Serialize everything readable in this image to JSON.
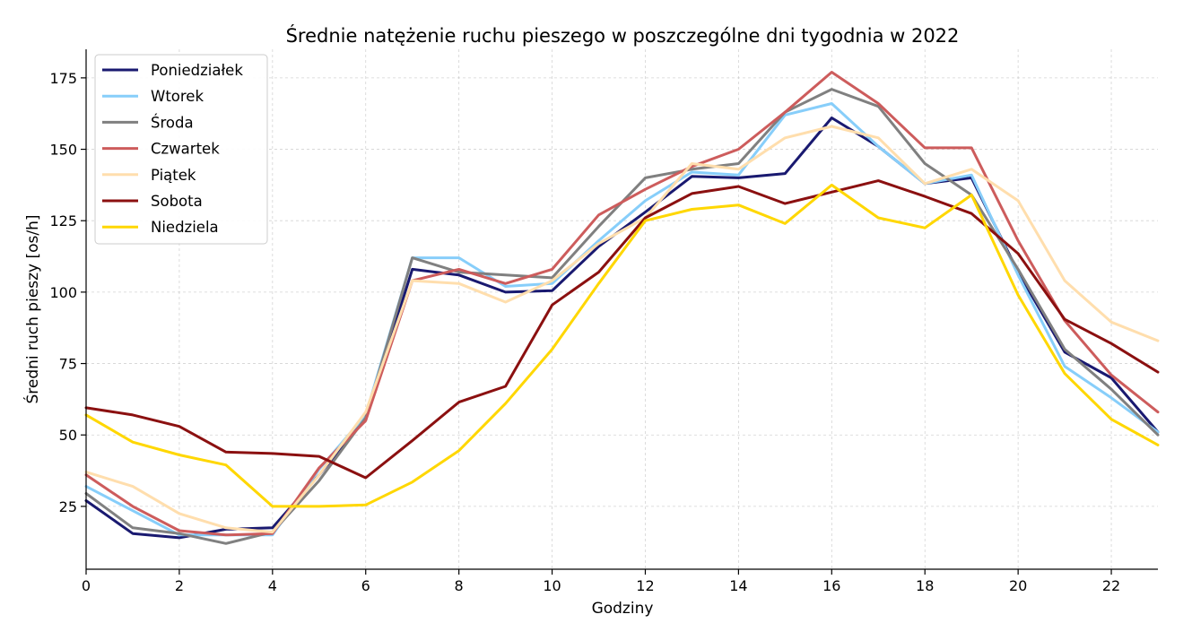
{
  "chart_data": {
    "type": "line",
    "title": "Średnie natężenie ruchu pieszego w poszczególne dni tygodnia w 2022",
    "xlabel": "Godziny",
    "ylabel": "Średni ruch pieszy [os/h]",
    "xlim": [
      0,
      23
    ],
    "ylim": [
      3,
      185
    ],
    "xticks": [
      0,
      2,
      4,
      6,
      8,
      10,
      12,
      14,
      16,
      18,
      20,
      22
    ],
    "yticks": [
      25,
      50,
      75,
      100,
      125,
      150,
      175
    ],
    "grid": true,
    "legend_position": "top-left",
    "x": [
      0,
      1,
      2,
      3,
      4,
      5,
      6,
      7,
      8,
      9,
      10,
      11,
      12,
      13,
      14,
      15,
      16,
      17,
      18,
      19,
      20,
      21,
      22,
      23
    ],
    "series": [
      {
        "name": "Poniedziałek",
        "color": "#191970",
        "values": [
          27,
          15.5,
          14,
          17,
          17.5,
          36,
          56,
          108,
          106,
          100,
          100.5,
          116,
          128,
          140.5,
          140,
          141.5,
          161,
          151,
          138,
          140,
          107,
          79,
          70,
          51
        ]
      },
      {
        "name": "Wtorek",
        "color": "#87cefa",
        "values": [
          32,
          23.5,
          15,
          15,
          15,
          38,
          57,
          112,
          112,
          102,
          103,
          118,
          132,
          142,
          141,
          162,
          166,
          151,
          138,
          141,
          106,
          74,
          63,
          51
        ]
      },
      {
        "name": "Środa",
        "color": "#808080",
        "values": [
          29.5,
          17.5,
          15.5,
          12,
          16,
          34,
          56,
          112,
          107,
          106,
          105,
          123,
          140,
          143,
          145,
          163,
          171,
          165,
          145,
          134,
          108,
          80,
          66,
          50
        ]
      },
      {
        "name": "Czwartek",
        "color": "#cd5c5c",
        "values": [
          36,
          25,
          16.5,
          15,
          15.5,
          38.5,
          55,
          104,
          108,
          103,
          108,
          127,
          136,
          144,
          150,
          163,
          177,
          166,
          150.5,
          150.5,
          118,
          90,
          71,
          58
        ]
      },
      {
        "name": "Piątek",
        "color": "#ffdead",
        "values": [
          37,
          32,
          22.5,
          17.5,
          16,
          36,
          58,
          104,
          103,
          96.5,
          104,
          117,
          126,
          145,
          143,
          154,
          158,
          154,
          138,
          143,
          132,
          104,
          89.5,
          83
        ]
      },
      {
        "name": "Sobota",
        "color": "#8b1010",
        "values": [
          59.5,
          57,
          53,
          44,
          43.5,
          42.5,
          35,
          48,
          61.5,
          67,
          95.5,
          107,
          126,
          134.5,
          137,
          131,
          135,
          139,
          133.5,
          127.5,
          113.5,
          90.5,
          82,
          72
        ]
      },
      {
        "name": "Niedziela",
        "color": "#ffd700",
        "values": [
          57,
          47.5,
          43,
          39.5,
          25,
          25,
          25.5,
          33.5,
          44.5,
          61,
          80,
          103,
          125,
          129,
          130.5,
          124,
          137.5,
          126,
          122.5,
          134,
          99,
          71.5,
          55.5,
          46.5
        ]
      }
    ]
  }
}
